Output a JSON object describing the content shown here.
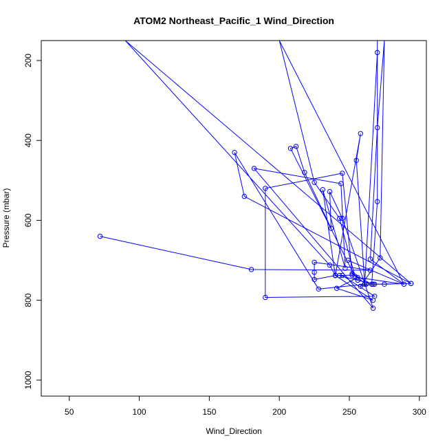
{
  "chart_data": {
    "type": "line",
    "title": "ATOM2 Northeast_Pacific_1 Wind_Direction",
    "xlabel": "Wind_Direction",
    "ylabel": "Pressure (mbar)",
    "xlim": [
      30,
      305
    ],
    "ylim": [
      1040,
      150
    ],
    "y_inverted": true,
    "x_ticks": [
      50,
      100,
      150,
      200,
      250,
      300
    ],
    "y_ticks": [
      200,
      400,
      600,
      800,
      1000
    ],
    "grid": false,
    "legend": "none",
    "color": "#0000ff",
    "marker": "open-circle",
    "series": [
      {
        "points": [
          [
            72,
            640
          ],
          [
            180,
            723
          ],
          [
            265,
            725
          ],
          [
            225,
            705
          ],
          [
            225,
            730
          ],
          [
            225,
            748
          ],
          [
            240,
            738
          ],
          [
            245,
            738
          ],
          [
            268,
            790
          ],
          [
            190,
            793
          ],
          [
            190,
            520
          ],
          [
            245,
            482
          ],
          [
            252,
            737
          ],
          [
            243,
            738
          ],
          [
            256,
            750
          ],
          [
            267,
            760
          ],
          [
            275,
            760
          ],
          [
            294,
            758
          ],
          [
            90,
            150
          ],
          [
            236,
            712
          ],
          [
            240,
            738
          ],
          [
            267,
            800
          ],
          [
            241,
            770
          ],
          [
            256,
            743
          ],
          [
            289,
            760
          ],
          [
            265,
            697
          ],
          [
            270,
            368
          ],
          [
            275,
            150
          ],
          [
            272,
            694
          ],
          [
            258,
            765
          ],
          [
            266,
            760
          ],
          [
            268,
            760
          ],
          [
            294,
            758
          ],
          [
            175,
            540
          ],
          [
            168,
            430
          ],
          [
            228,
            772
          ],
          [
            262,
            760
          ],
          [
            252,
            733
          ],
          [
            266,
            760
          ],
          [
            270,
            553
          ],
          [
            270,
            150
          ],
          [
            270,
            180
          ],
          [
            261,
            760
          ],
          [
            255,
            450
          ],
          [
            258,
            383
          ],
          [
            240,
            738
          ],
          [
            231,
            523
          ],
          [
            247,
            720
          ],
          [
            244,
            508
          ],
          [
            182,
            470
          ],
          [
            267,
            820
          ],
          [
            245,
            595
          ],
          [
            236,
            528
          ],
          [
            237,
            620
          ],
          [
            218,
            480
          ],
          [
            212,
            415
          ],
          [
            208,
            420
          ],
          [
            254,
            740
          ],
          [
            243,
            595
          ],
          [
            225,
            505
          ],
          [
            200,
            150
          ],
          [
            289,
            760
          ],
          [
            249,
            700
          ]
        ]
      }
    ]
  }
}
